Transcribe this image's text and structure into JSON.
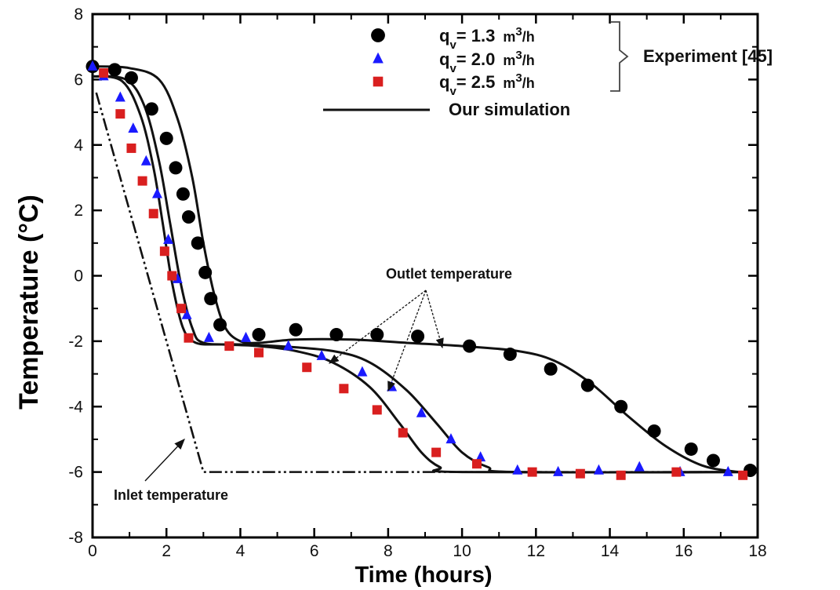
{
  "chart_data": {
    "type": "line",
    "xlabel": "Time (hours)",
    "ylabel": "Temperature (°C)",
    "xlim": [
      0,
      18
    ],
    "ylim": [
      -8,
      8
    ],
    "x_ticks": [
      0,
      2,
      4,
      6,
      8,
      10,
      12,
      14,
      16,
      18
    ],
    "y_ticks": [
      -8,
      -6,
      -4,
      -2,
      0,
      2,
      4,
      6,
      8
    ],
    "grid": false,
    "legend_position": "top-right",
    "legend": {
      "entries": [
        {
          "label_main": "q",
          "label_sub": "v",
          "label_value": "= 1.3",
          "label_unit": "m",
          "label_sup": "3",
          "label_tail": "/h",
          "marker": "circle",
          "color": "#000000"
        },
        {
          "label_main": "q",
          "label_sub": "v",
          "label_value": "= 2.0",
          "label_unit": "m",
          "label_sup": "3",
          "label_tail": "/h",
          "marker": "triangle",
          "color": "#1a1aff"
        },
        {
          "label_main": "q",
          "label_sub": "v",
          "label_value": "= 2.5",
          "label_unit": "m",
          "label_sup": "3",
          "label_tail": "/h",
          "marker": "square",
          "color": "#d91f1f"
        }
      ],
      "experiment_label": "Experiment [45]",
      "simulation_label": "Our simulation"
    },
    "annotations": {
      "outlet": "Outlet temperature",
      "inlet": "Inlet temperature"
    },
    "experiment_series": [
      {
        "name": "q_v = 1.3 m3/h",
        "marker": "circle",
        "color": "#000000",
        "points": [
          [
            0,
            6.4
          ],
          [
            0.6,
            6.3
          ],
          [
            1.05,
            6.05
          ],
          [
            1.6,
            5.1
          ],
          [
            2.0,
            4.2
          ],
          [
            2.25,
            3.3
          ],
          [
            2.45,
            2.5
          ],
          [
            2.6,
            1.8
          ],
          [
            2.85,
            1.0
          ],
          [
            3.05,
            0.1
          ],
          [
            3.2,
            -0.7
          ],
          [
            3.45,
            -1.5
          ],
          [
            4.5,
            -1.8
          ],
          [
            5.5,
            -1.65
          ],
          [
            6.6,
            -1.8
          ],
          [
            7.7,
            -1.8
          ],
          [
            8.8,
            -1.85
          ],
          [
            10.2,
            -2.15
          ],
          [
            11.3,
            -2.4
          ],
          [
            12.4,
            -2.85
          ],
          [
            13.4,
            -3.35
          ],
          [
            14.3,
            -4.0
          ],
          [
            15.2,
            -4.75
          ],
          [
            16.2,
            -5.3
          ],
          [
            16.8,
            -5.65
          ],
          [
            17.8,
            -5.95
          ]
        ]
      },
      {
        "name": "q_v = 2.0 m3/h",
        "marker": "triangle",
        "color": "#1a1aff",
        "points": [
          [
            0,
            6.4
          ],
          [
            0.3,
            6.1
          ],
          [
            0.75,
            5.45
          ],
          [
            1.1,
            4.5
          ],
          [
            1.45,
            3.5
          ],
          [
            1.75,
            2.5
          ],
          [
            2.05,
            1.1
          ],
          [
            2.3,
            -0.1
          ],
          [
            2.55,
            -1.2
          ],
          [
            3.15,
            -1.9
          ],
          [
            4.15,
            -1.9
          ],
          [
            5.3,
            -2.15
          ],
          [
            6.2,
            -2.45
          ],
          [
            7.3,
            -2.95
          ],
          [
            8.1,
            -3.4
          ],
          [
            8.9,
            -4.2
          ],
          [
            9.7,
            -5.0
          ],
          [
            10.5,
            -5.55
          ],
          [
            11.5,
            -5.95
          ],
          [
            12.6,
            -6.0
          ],
          [
            13.7,
            -5.95
          ],
          [
            14.8,
            -5.85
          ],
          [
            15.9,
            -6.0
          ],
          [
            17.2,
            -6.0
          ]
        ]
      },
      {
        "name": "q_v = 2.5 m3/h",
        "marker": "square",
        "color": "#d91f1f",
        "points": [
          [
            0.3,
            6.2
          ],
          [
            0.75,
            4.95
          ],
          [
            1.05,
            3.9
          ],
          [
            1.35,
            2.9
          ],
          [
            1.65,
            1.9
          ],
          [
            1.95,
            0.75
          ],
          [
            2.15,
            0.0
          ],
          [
            2.4,
            -1.0
          ],
          [
            2.6,
            -1.9
          ],
          [
            3.7,
            -2.15
          ],
          [
            4.5,
            -2.35
          ],
          [
            5.8,
            -2.8
          ],
          [
            6.8,
            -3.45
          ],
          [
            7.7,
            -4.1
          ],
          [
            8.4,
            -4.8
          ],
          [
            9.3,
            -5.4
          ],
          [
            10.4,
            -5.75
          ],
          [
            11.9,
            -6.0
          ],
          [
            13.2,
            -6.05
          ],
          [
            14.3,
            -6.1
          ],
          [
            15.8,
            -6.0
          ],
          [
            17.6,
            -6.1
          ]
        ]
      }
    ],
    "simulation_series": [
      {
        "name": "Our simulation (q_v = 1.3 m3/h)",
        "points": [
          [
            0,
            6.4
          ],
          [
            1.0,
            6.35
          ],
          [
            1.8,
            6.0
          ],
          [
            2.3,
            4.8
          ],
          [
            2.7,
            3.0
          ],
          [
            3.0,
            1.0
          ],
          [
            3.3,
            -0.6
          ],
          [
            3.6,
            -1.6
          ],
          [
            4.0,
            -2.0
          ],
          [
            4.5,
            -2.05
          ],
          [
            5.5,
            -1.95
          ],
          [
            7.0,
            -1.95
          ],
          [
            8.5,
            -2.05
          ],
          [
            10.0,
            -2.15
          ],
          [
            11.5,
            -2.3
          ],
          [
            12.5,
            -2.6
          ],
          [
            13.5,
            -3.3
          ],
          [
            14.5,
            -4.3
          ],
          [
            15.5,
            -5.2
          ],
          [
            16.5,
            -5.8
          ],
          [
            17.5,
            -6.0
          ],
          [
            18,
            -6.0
          ]
        ]
      },
      {
        "name": "Our simulation (q_v = 2.0 m3/h)",
        "points": [
          [
            0,
            6.1
          ],
          [
            0.9,
            6.0
          ],
          [
            1.4,
            5.2
          ],
          [
            1.8,
            3.5
          ],
          [
            2.1,
            1.6
          ],
          [
            2.4,
            -0.3
          ],
          [
            2.7,
            -1.6
          ],
          [
            3.0,
            -2.05
          ],
          [
            4.0,
            -2.1
          ],
          [
            5.0,
            -2.15
          ],
          [
            6.5,
            -2.3
          ],
          [
            7.5,
            -2.65
          ],
          [
            8.5,
            -3.5
          ],
          [
            9.3,
            -4.5
          ],
          [
            10.0,
            -5.4
          ],
          [
            10.7,
            -5.85
          ],
          [
            11.5,
            -6.0
          ],
          [
            18,
            -6.0
          ]
        ]
      },
      {
        "name": "Our simulation (q_v = 2.5 m3/h)",
        "points": [
          [
            0,
            6.1
          ],
          [
            0.8,
            5.95
          ],
          [
            1.3,
            4.9
          ],
          [
            1.65,
            3.3
          ],
          [
            1.9,
            1.6
          ],
          [
            2.15,
            -0.2
          ],
          [
            2.45,
            -1.6
          ],
          [
            2.8,
            -2.05
          ],
          [
            3.5,
            -2.1
          ],
          [
            4.5,
            -2.15
          ],
          [
            5.5,
            -2.3
          ],
          [
            6.5,
            -2.65
          ],
          [
            7.5,
            -3.4
          ],
          [
            8.3,
            -4.5
          ],
          [
            8.9,
            -5.4
          ],
          [
            9.4,
            -5.85
          ],
          [
            10.0,
            -6.0
          ],
          [
            18,
            -6.0
          ]
        ]
      }
    ],
    "inlet_series": {
      "name": "Inlet temperature",
      "points": [
        [
          0.1,
          5.6
        ],
        [
          3.0,
          -6.0
        ],
        [
          18,
          -6.0
        ]
      ]
    }
  }
}
